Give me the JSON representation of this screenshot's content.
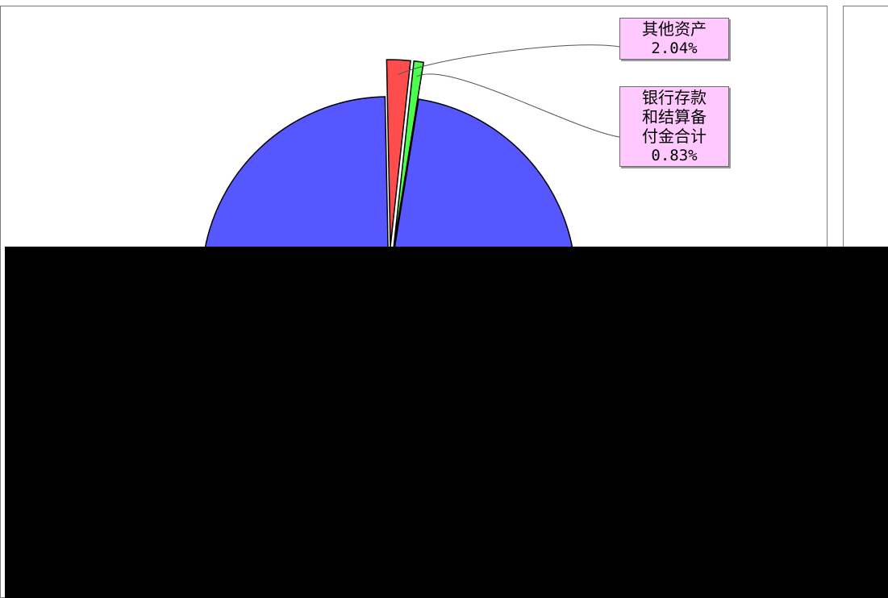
{
  "chart_data": {
    "type": "pie",
    "title": "",
    "slices": [
      {
        "label": "",
        "value": 97.13,
        "color": "#5757ff"
      },
      {
        "label": "其他资产",
        "value": 2.04,
        "color": "#ff4d4d"
      },
      {
        "label": "银行存款和结算备付金合计",
        "value": 0.83,
        "color": "#4dff4d"
      }
    ],
    "callouts": [
      {
        "lines": "其他资产",
        "percent": "2.04%"
      },
      {
        "lines": "银行存款\n和结算备\n付金合计",
        "percent": "0.83%"
      }
    ],
    "legend": "none"
  }
}
